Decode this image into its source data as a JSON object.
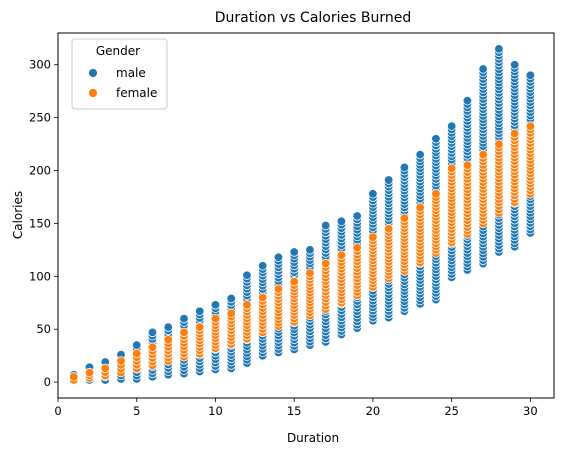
{
  "chart_data": {
    "type": "scatter",
    "title": "Duration vs Calories Burned",
    "xlabel": "Duration",
    "ylabel": "Calories",
    "xlim": [
      0,
      31.5
    ],
    "ylim": [
      -15,
      330
    ],
    "xticks": [
      0,
      5,
      10,
      15,
      20,
      25,
      30
    ],
    "yticks": [
      0,
      50,
      100,
      150,
      200,
      250,
      300
    ],
    "grid": false,
    "legend": {
      "title": "Gender",
      "placement": "top-left",
      "entries": [
        "male",
        "female"
      ]
    },
    "colors": {
      "male": "#1f77b4",
      "female": "#ff7f0e"
    },
    "series": [
      {
        "name": "male",
        "color": "#1f77b4",
        "ranges": [
          {
            "x": 1,
            "min": 2,
            "max": 7
          },
          {
            "x": 2,
            "min": 2,
            "max": 14
          },
          {
            "x": 3,
            "min": 2,
            "max": 19
          },
          {
            "x": 4,
            "min": 3,
            "max": 26
          },
          {
            "x": 5,
            "min": 3,
            "max": 35
          },
          {
            "x": 6,
            "min": 5,
            "max": 47
          },
          {
            "x": 7,
            "min": 7,
            "max": 52
          },
          {
            "x": 8,
            "min": 8,
            "max": 60
          },
          {
            "x": 9,
            "min": 10,
            "max": 67
          },
          {
            "x": 10,
            "min": 12,
            "max": 73
          },
          {
            "x": 11,
            "min": 13,
            "max": 79
          },
          {
            "x": 12,
            "min": 18,
            "max": 101
          },
          {
            "x": 13,
            "min": 25,
            "max": 110
          },
          {
            "x": 14,
            "min": 28,
            "max": 118
          },
          {
            "x": 15,
            "min": 31,
            "max": 123
          },
          {
            "x": 16,
            "min": 35,
            "max": 125
          },
          {
            "x": 17,
            "min": 38,
            "max": 148
          },
          {
            "x": 18,
            "min": 45,
            "max": 152
          },
          {
            "x": 19,
            "min": 51,
            "max": 157
          },
          {
            "x": 20,
            "min": 58,
            "max": 178
          },
          {
            "x": 21,
            "min": 61,
            "max": 191
          },
          {
            "x": 22,
            "min": 67,
            "max": 203
          },
          {
            "x": 23,
            "min": 74,
            "max": 215
          },
          {
            "x": 24,
            "min": 78,
            "max": 230
          },
          {
            "x": 25,
            "min": 99,
            "max": 242
          },
          {
            "x": 26,
            "min": 106,
            "max": 266
          },
          {
            "x": 27,
            "min": 112,
            "max": 296
          },
          {
            "x": 28,
            "min": 123,
            "max": 315
          },
          {
            "x": 29,
            "min": 128,
            "max": 300
          },
          {
            "x": 30,
            "min": 141,
            "max": 290
          }
        ]
      },
      {
        "name": "female",
        "color": "#ff7f0e",
        "ranges": [
          {
            "x": 1,
            "min": 2,
            "max": 5
          },
          {
            "x": 2,
            "min": 4,
            "max": 9
          },
          {
            "x": 3,
            "min": 6,
            "max": 13
          },
          {
            "x": 4,
            "min": 9,
            "max": 20
          },
          {
            "x": 5,
            "min": 13,
            "max": 27
          },
          {
            "x": 6,
            "min": 16,
            "max": 33
          },
          {
            "x": 7,
            "min": 20,
            "max": 40
          },
          {
            "x": 8,
            "min": 24,
            "max": 47
          },
          {
            "x": 9,
            "min": 27,
            "max": 52
          },
          {
            "x": 10,
            "min": 32,
            "max": 60
          },
          {
            "x": 11,
            "min": 36,
            "max": 65
          },
          {
            "x": 12,
            "min": 41,
            "max": 73
          },
          {
            "x": 13,
            "min": 47,
            "max": 80
          },
          {
            "x": 14,
            "min": 53,
            "max": 88
          },
          {
            "x": 15,
            "min": 57,
            "max": 95
          },
          {
            "x": 16,
            "min": 63,
            "max": 103
          },
          {
            "x": 17,
            "min": 69,
            "max": 112
          },
          {
            "x": 18,
            "min": 75,
            "max": 120
          },
          {
            "x": 19,
            "min": 82,
            "max": 127
          },
          {
            "x": 20,
            "min": 90,
            "max": 137
          },
          {
            "x": 21,
            "min": 98,
            "max": 145
          },
          {
            "x": 22,
            "min": 105,
            "max": 155
          },
          {
            "x": 23,
            "min": 113,
            "max": 165
          },
          {
            "x": 24,
            "min": 122,
            "max": 178
          },
          {
            "x": 25,
            "min": 132,
            "max": 202
          },
          {
            "x": 26,
            "min": 140,
            "max": 205
          },
          {
            "x": 27,
            "min": 150,
            "max": 215
          },
          {
            "x": 28,
            "min": 160,
            "max": 225
          },
          {
            "x": 29,
            "min": 170,
            "max": 235
          },
          {
            "x": 30,
            "min": 178,
            "max": 242
          }
        ]
      }
    ]
  }
}
